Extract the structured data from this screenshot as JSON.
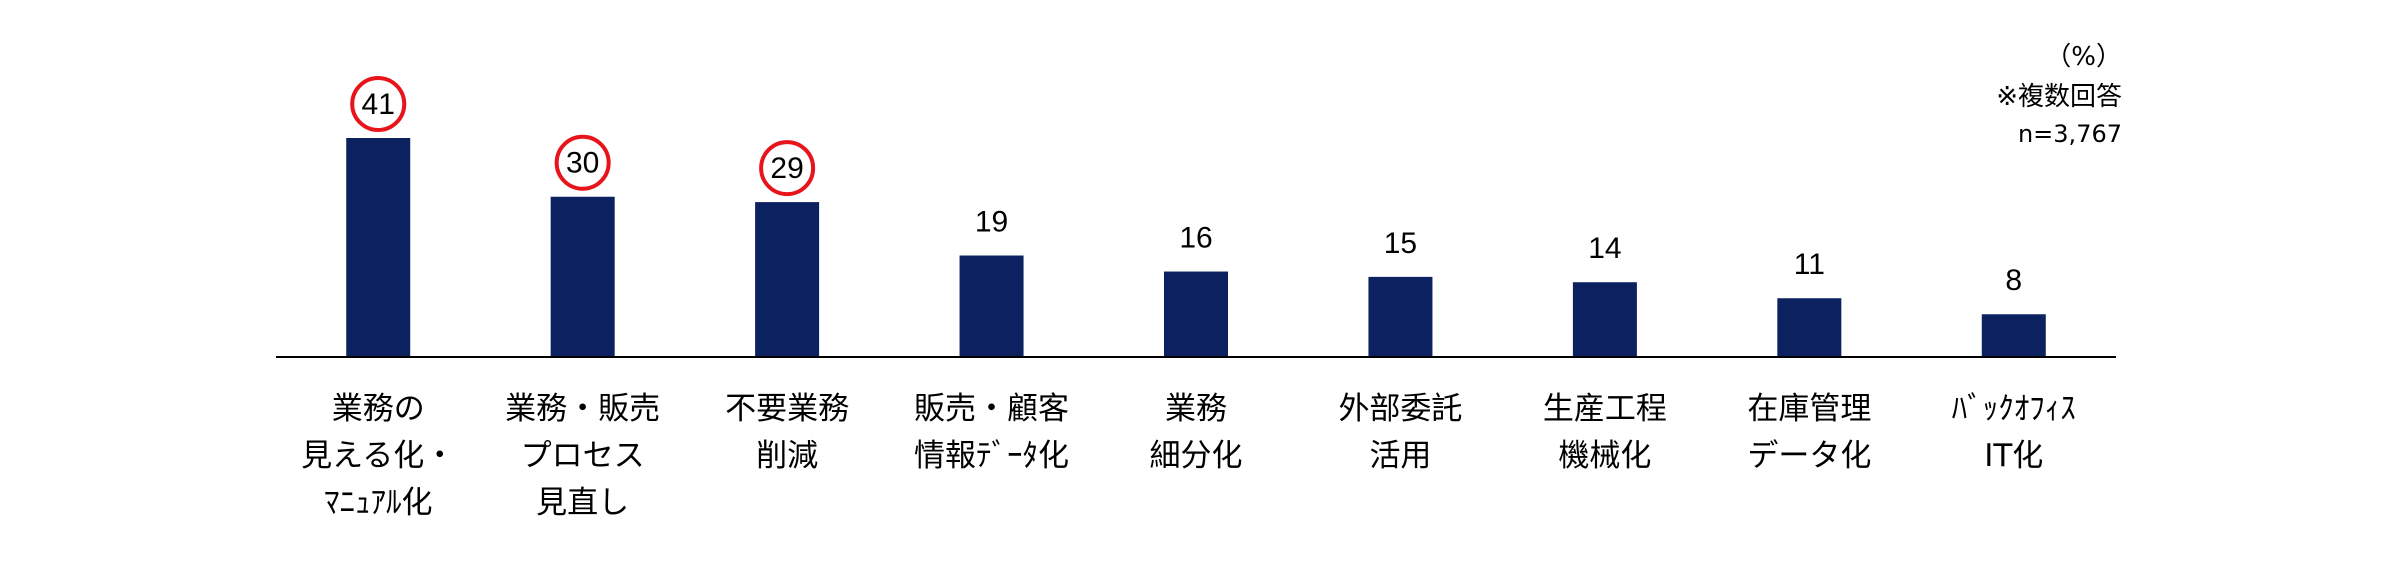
{
  "chart_data": {
    "type": "bar",
    "unit_label": "（%）",
    "note": "※複数回答",
    "sample_size": "n=3,767",
    "categories": [
      "業務の\n見える化・\nﾏﾆｭｱﾙ化",
      "業務・販売\nプロセス\n見直し",
      "不要業務\n削減",
      "販売・顧客\n情報ﾃﾞｰﾀ化",
      "業務\n細分化",
      "外部委託\n活用",
      "生産工程\n機械化",
      "在庫管理\nデータ化",
      "ﾊﾞｯｸｵﾌｨｽ\nIT化"
    ],
    "values": [
      41,
      30,
      29,
      19,
      16,
      15,
      14,
      11,
      8
    ],
    "circled": [
      true,
      true,
      true,
      false,
      false,
      false,
      false,
      false,
      false
    ],
    "color": "#0b2160",
    "circle_color": "#e8141b"
  }
}
